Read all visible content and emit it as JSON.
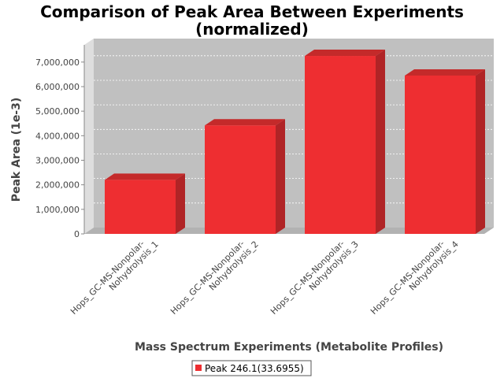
{
  "chart_data": {
    "type": "bar",
    "title": "Comparison of Peak Area Between Experiments",
    "subtitle": "(normalized)",
    "xlabel": "Mass Spectrum Experiments (Metabolite Profiles)",
    "ylabel": "Peak Area (1e-3)",
    "categories": [
      "Hops_GC-MS-Nonpolar-Nohydrolysis_1",
      "Hops_GC-MS-Nonpolar-Nohydrolysis_2",
      "Hops_GC-MS-Nonpolar-Nohydrolysis_3",
      "Hops_GC-MS-Nonpolar-Nohydrolysis_4"
    ],
    "category_lines": [
      [
        "Hops_GC-MS-Nonpolar-",
        "Nohydrolysis_1"
      ],
      [
        "Hops_GC-MS-Nonpolar-",
        "Nohydrolysis_2"
      ],
      [
        "Hops_GC-MS-Nonpolar-",
        "Nohydrolysis_3"
      ],
      [
        "Hops_GC-MS-Nonpolar-",
        "Nohydrolysis_4"
      ]
    ],
    "series": [
      {
        "name": "Peak 246.1(33.6955)",
        "values": [
          2200000,
          4420000,
          7250000,
          6450000
        ]
      }
    ],
    "ylim": [
      0,
      7700000
    ],
    "yticks": [
      0,
      1000000,
      2000000,
      3000000,
      4000000,
      5000000,
      6000000,
      7000000
    ],
    "ytick_labels": [
      "0",
      "1,000,000",
      "2,000,000",
      "3,000,000",
      "4,000,000",
      "5,000,000",
      "6,000,000",
      "7,000,000"
    ],
    "grid": true,
    "legend_position": "bottom",
    "colors": {
      "bar_front": "#ee2e31",
      "bar_top": "#c42a2a",
      "bar_side": "#b02426",
      "plot_back": "#c0c0c0",
      "plot_left_wall": "#dedede",
      "plot_floor": "#b2b2b2"
    }
  }
}
